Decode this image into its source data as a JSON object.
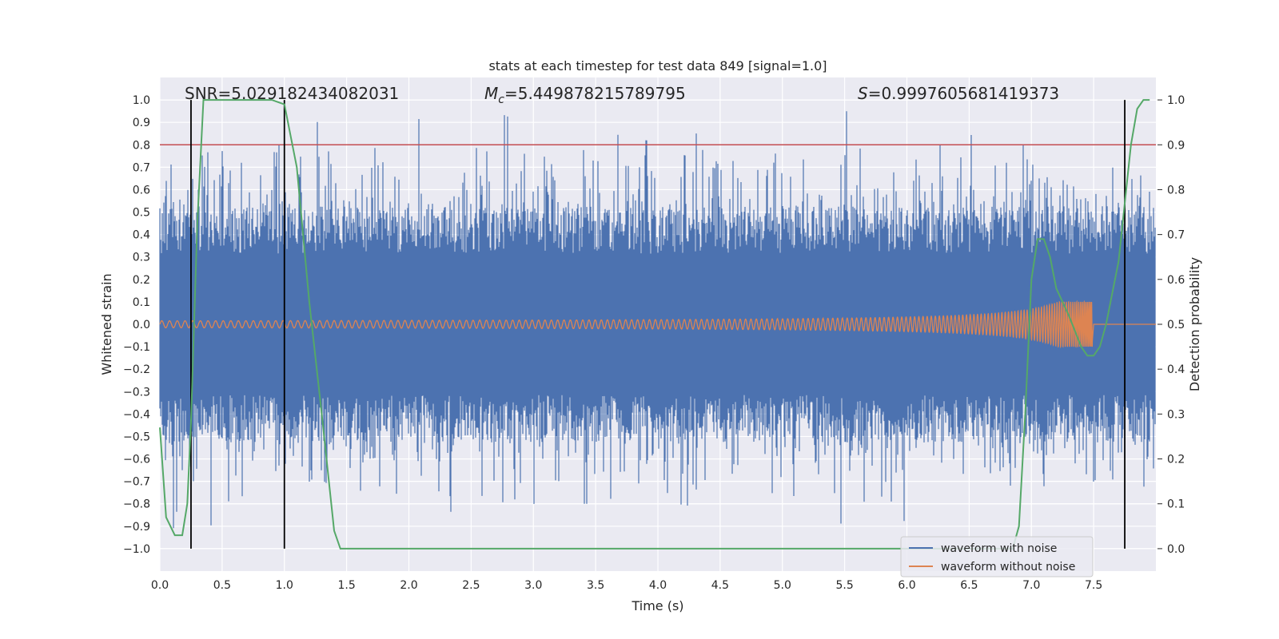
{
  "chart_data": {
    "type": "line",
    "title": "stats at each timestep for test data 849 [signal=1.0]",
    "xlabel": "Time (s)",
    "ylabel": "Whitened strain",
    "ylabel_right": "Detection probability",
    "xlim": [
      0,
      8
    ],
    "ylim": [
      -1.1,
      1.1
    ],
    "ylim_right": [
      -0.05,
      1.05
    ],
    "x_ticks": [
      "0.0",
      "0.5",
      "1.0",
      "1.5",
      "2.0",
      "2.5",
      "3.0",
      "3.5",
      "4.0",
      "4.5",
      "5.0",
      "5.5",
      "6.0",
      "6.5",
      "7.0",
      "7.5"
    ],
    "y_ticks": [
      "1.0",
      "0.9",
      "0.8",
      "0.7",
      "0.6",
      "0.5",
      "0.4",
      "0.3",
      "0.2",
      "0.1",
      "0.0",
      "−0.1",
      "−0.2",
      "−0.3",
      "−0.4",
      "−0.5",
      "−0.6",
      "−0.7",
      "−0.8",
      "−0.9",
      "−1.0"
    ],
    "y_ticks_right": [
      "1.0",
      "0.9",
      "0.8",
      "0.7",
      "0.6",
      "0.5",
      "0.4",
      "0.3",
      "0.2",
      "0.1",
      "0.0"
    ],
    "annotations": {
      "snr": "SNR=5.029182434082031",
      "mc_symbol": "M",
      "mc_sub": "c",
      "mc_value": "=5.449878215789795",
      "s_symbol": "S",
      "s_value": "=0.9997605681419373"
    },
    "threshold": 0.9,
    "vlines": [
      0.25,
      1.0,
      7.75
    ],
    "legend": [
      "waveform with noise",
      "waveform without noise"
    ],
    "series": [
      {
        "name": "waveform with noise",
        "color": "#4c72b0",
        "kind": "noise",
        "band": 0.42,
        "spikes_max": 1.0
      },
      {
        "name": "waveform without noise",
        "color": "#dd8452",
        "kind": "chirp",
        "t_start": 0.0,
        "t_merge": 7.49,
        "amp_start": 0.01,
        "amp_merge": 0.1
      },
      {
        "name": "detection probability",
        "color": "#55a868",
        "axis": "right",
        "x": [
          0.0,
          0.05,
          0.12,
          0.18,
          0.22,
          0.25,
          0.3,
          0.35,
          0.5,
          0.7,
          0.9,
          1.0,
          1.1,
          1.2,
          1.3,
          1.4,
          1.45,
          1.6,
          2.0,
          3.0,
          4.0,
          5.0,
          6.0,
          6.5,
          6.85,
          6.9,
          6.95,
          7.0,
          7.05,
          7.1,
          7.15,
          7.2,
          7.3,
          7.4,
          7.45,
          7.5,
          7.55,
          7.6,
          7.7,
          7.8,
          7.85,
          7.9,
          7.95
        ],
        "values": [
          0.27,
          0.07,
          0.03,
          0.03,
          0.1,
          0.28,
          0.72,
          1.0,
          1.0,
          1.0,
          1.0,
          0.99,
          0.85,
          0.55,
          0.3,
          0.04,
          0.0,
          0.0,
          0.0,
          0.0,
          0.0,
          0.0,
          0.0,
          0.0,
          0.0,
          0.05,
          0.3,
          0.6,
          0.69,
          0.69,
          0.65,
          0.58,
          0.52,
          0.45,
          0.43,
          0.43,
          0.45,
          0.5,
          0.64,
          0.9,
          0.98,
          1.0,
          1.0
        ]
      }
    ]
  }
}
